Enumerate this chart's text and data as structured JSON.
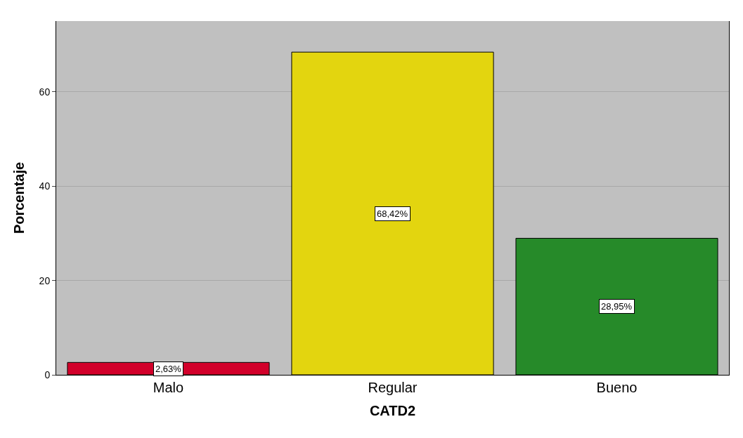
{
  "chart_data": {
    "type": "bar",
    "xlabel": "CATD2",
    "ylabel": "Porcentaje",
    "categories": [
      "Malo",
      "Regular",
      "Bueno"
    ],
    "values": [
      2.63,
      68.42,
      28.95
    ],
    "colors": [
      "#d2002a",
      "#e3d50f",
      "#268a29"
    ],
    "value_labels": [
      "2,63%",
      "68,42%",
      "28,95%"
    ],
    "ylim": [
      0,
      75
    ],
    "yticks": [
      0,
      20,
      40,
      60
    ],
    "grid": "y"
  }
}
